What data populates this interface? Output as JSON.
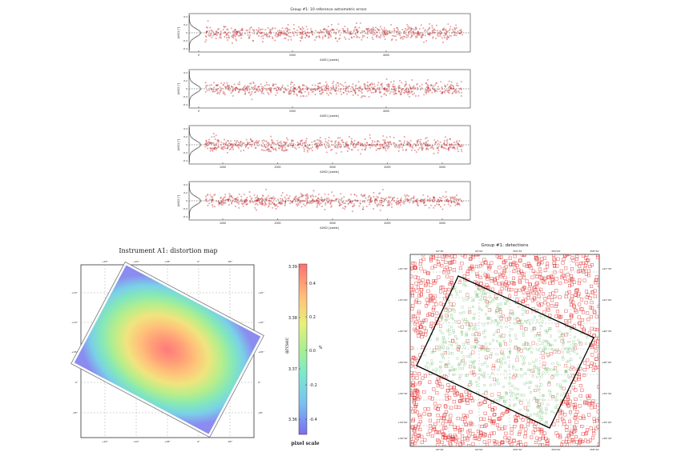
{
  "colors": {
    "accent": "#c0282d",
    "detect_red": "#e02020",
    "detect_green": "#4fb04f",
    "frame": "#000000",
    "grid": "#999999"
  },
  "top_title": "Group #1: 10 reference astrometric errors",
  "panels": [
    {
      "xlabel": "AXIS1 [pixels]",
      "ylabel": "AXIS1 [\"]",
      "ticks": [
        "0",
        "2000",
        "4000"
      ],
      "yticks": [
        "0.4",
        "0.2",
        "0",
        "-0.2",
        "-0.4"
      ]
    },
    {
      "xlabel": "AXIS1 [pixels]",
      "ylabel": "AXIS2 [\"]",
      "ticks": [
        "0",
        "2000",
        "4000"
      ],
      "yticks": [
        "0.4",
        "0.2",
        "0",
        "-0.2",
        "-0.4"
      ]
    },
    {
      "xlabel": "AXIS2 [pixels]",
      "ylabel": "AXIS1 [\"]",
      "ticks": [
        "1000",
        "2000",
        "3000",
        "4000",
        "5000"
      ],
      "yticks": [
        "0.4",
        "0.2",
        "0",
        "-0.2",
        "-0.4"
      ]
    },
    {
      "xlabel": "AXIS2 [pixels]",
      "ylabel": "AXIS2 [\"]",
      "ticks": [
        "1000",
        "2000",
        "3000",
        "4000",
        "5000"
      ],
      "yticks": [
        "0.4",
        "0.2",
        "0",
        "-0.2",
        "-0.4"
      ]
    }
  ],
  "distortion": {
    "title": "Instrument A1: distortion map",
    "ra_ticks": [
      "+15°",
      "+10°",
      "+05°",
      "0°",
      "-05°",
      "-10°"
    ],
    "dec_ticks": [
      "+15°",
      "+10°",
      "+05°",
      "0°",
      "-05°",
      "-10°"
    ],
    "colorbar_label": "arcsec",
    "colorbar_ticks_left": [
      "3.39",
      "3.38",
      "3.37",
      "3.36"
    ],
    "colorbar_ticks_right": [
      "0.4",
      "0.2",
      "0.0",
      "-0.2",
      "-0.4"
    ],
    "colorbar_unit": "%",
    "pixel_scale_label": "pixel scale"
  },
  "detections": {
    "title": "Group #1: detections",
    "top_ticks": [
      "00°30'",
      "00°00'",
      "359°30'",
      "359°00'",
      "358°30'"
    ],
    "bottom_ticks": [
      "00°30'",
      "00°00'",
      "359°30'",
      "359°00'",
      "358°30'"
    ],
    "right_ticks": [
      "+61°30'",
      "+61°00'",
      "+60°30'",
      "+60°00'",
      "+59°30'",
      "+59°00'",
      "+58°30'"
    ],
    "left_ticks": [
      "+61°30'",
      "+61°00'",
      "+60°30'",
      "+60°00'",
      "+59°30'",
      "+59°00'",
      "+58°30'"
    ]
  },
  "chart_data": [
    {
      "type": "scatter",
      "title": "Group #1: 10 reference astrometric errors",
      "xlabel": "AXIS1 [pixels]",
      "ylabel": "AXIS1 [\"]",
      "xlim": [
        -500,
        5500
      ],
      "ylim": [
        -0.5,
        0.5
      ]
    },
    {
      "type": "scatter",
      "xlabel": "AXIS1 [pixels]",
      "ylabel": "AXIS2 [\"]",
      "xlim": [
        -500,
        5500
      ],
      "ylim": [
        -0.5,
        0.5
      ]
    },
    {
      "type": "scatter",
      "xlabel": "AXIS2 [pixels]",
      "ylabel": "AXIS1 [\"]",
      "xlim": [
        0,
        6000
      ],
      "ylim": [
        -0.5,
        0.5
      ]
    },
    {
      "type": "scatter",
      "xlabel": "AXIS2 [pixels]",
      "ylabel": "AXIS2 [\"]",
      "xlim": [
        0,
        6000
      ],
      "ylim": [
        -0.5,
        0.5
      ]
    },
    {
      "type": "heatmap",
      "title": "Instrument A1: distortion map",
      "colorbar": {
        "label": "arcsec",
        "range": [
          3.355,
          3.392
        ],
        "pct_range": [
          -0.45,
          0.45
        ]
      }
    },
    {
      "type": "scatter",
      "title": "Group #1: detections"
    }
  ]
}
